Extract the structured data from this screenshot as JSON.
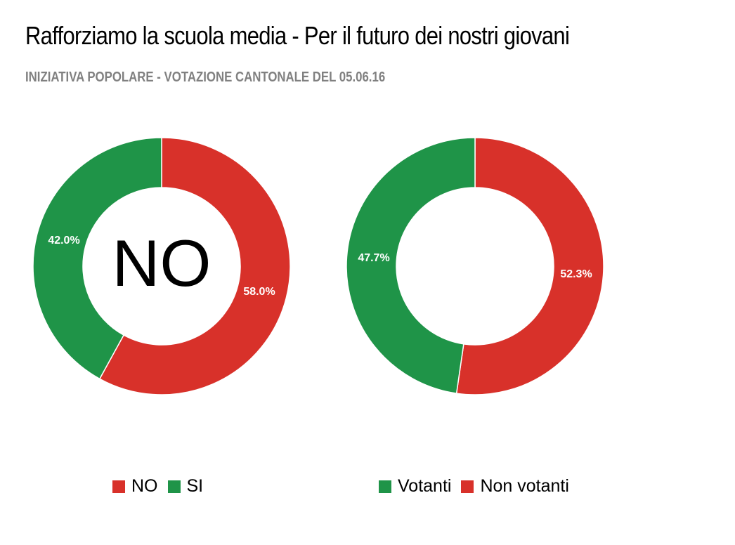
{
  "header": {
    "title": "Rafforziamo la scuola media - Per il futuro dei nostri giovani",
    "subtitle": "INIZIATIVA POPOLARE - VOTAZIONE CANTONALE DEL 05.06.16"
  },
  "colors": {
    "red": "#d8312a",
    "green": "#1f9448"
  },
  "chart_data": [
    {
      "type": "pie",
      "title": "",
      "center_label": "NO",
      "slices": [
        {
          "label": "NO",
          "value": 58.0,
          "display": "58.0%",
          "color": "#d8312a"
        },
        {
          "label": "SI",
          "value": 42.0,
          "display": "42.0%",
          "color": "#1f9448"
        }
      ],
      "legend": [
        {
          "label": "NO",
          "color": "#d8312a"
        },
        {
          "label": "SI",
          "color": "#1f9448"
        }
      ],
      "legend_position": "bottom"
    },
    {
      "type": "pie",
      "title": "",
      "center_label": "",
      "slices": [
        {
          "label": "Non votanti",
          "value": 52.3,
          "display": "52.3%",
          "color": "#d8312a"
        },
        {
          "label": "Votanti",
          "value": 47.7,
          "display": "47.7%",
          "color": "#1f9448"
        }
      ],
      "legend": [
        {
          "label": "Votanti",
          "color": "#1f9448"
        },
        {
          "label": "Non votanti",
          "color": "#d8312a"
        }
      ],
      "legend_position": "bottom"
    }
  ]
}
